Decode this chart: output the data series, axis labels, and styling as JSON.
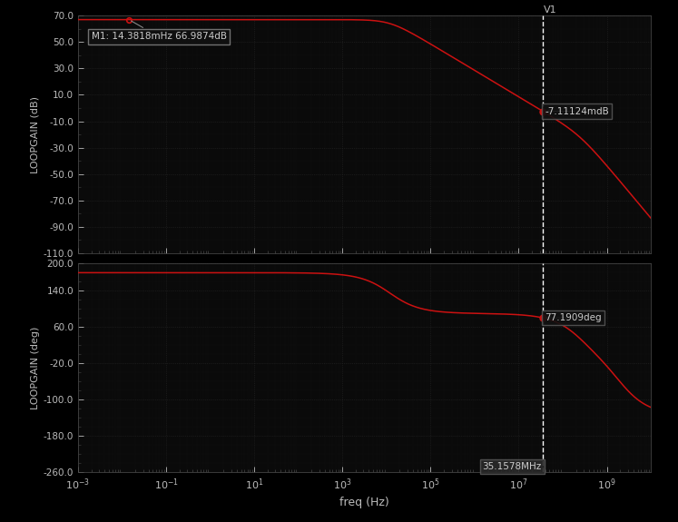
{
  "bg_color": "#000000",
  "plot_bg_color": "#0a0a0a",
  "line_color": "#cc1111",
  "text_color": "#bbbbbb",
  "freq_min": 0.001,
  "freq_max": 10000000000.0,
  "gain_ylim": [
    -110.0,
    70.0
  ],
  "gain_yticks": [
    70.0,
    50.0,
    30.0,
    10.0,
    -10.0,
    -30.0,
    -50.0,
    -70.0,
    -90.0,
    -110.0
  ],
  "phase_ylim": [
    -260.0,
    200.0
  ],
  "phase_yticks": [
    200.0,
    140.0,
    60.0,
    -20.0,
    -100.0,
    -180.0,
    -260.0
  ],
  "marker_freq": 35157800,
  "marker_freq_label": "35.1578MHz",
  "m1_freq": 0.0143818,
  "m1_gain": 66.9874,
  "m1_label": "M1: 14.3818mHz 66.9874dB",
  "gain_marker_val": -7.11124,
  "gain_marker_label": "-7.11124mdB",
  "phase_marker_val": 77.1909,
  "phase_marker_label": "77.1909deg",
  "xlabel": "freq (Hz)",
  "ylabel_gain": "LOOPGAIN (dB)",
  "ylabel_phase": "LOOPGAIN (deg)",
  "v1_label": "V1"
}
